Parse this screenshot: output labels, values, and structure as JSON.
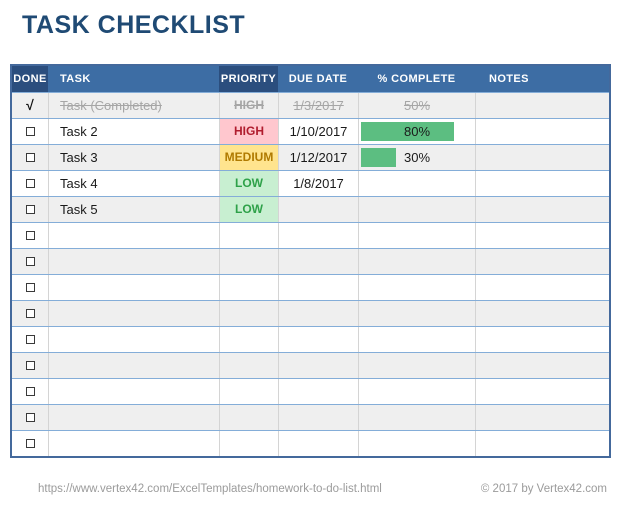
{
  "title": "TASK CHECKLIST",
  "colors": {
    "title_blue": "#1F4A74",
    "header_blue": "#3D6DA4",
    "header_dark_blue": "#2B4E7E",
    "row_band_gray": "#EFEFEF",
    "completed_gray": "#A6A6A6",
    "high_bg": "#FFC7CE",
    "high_text": "#B01C2E",
    "medium_bg": "#FFE48E",
    "medium_text": "#B07A00",
    "low_bg": "#C8EFD1",
    "low_text": "#2EA149",
    "bar_green": "#5CBE81"
  },
  "table": {
    "headers": [
      "DONE",
      "TASK",
      "PRIORITY",
      "DUE DATE",
      "% COMPLETE",
      "NOTES"
    ],
    "check_glyph": "√",
    "rows": [
      {
        "done": "check",
        "task": "Task (Completed)",
        "priority": "HIGH",
        "due": "1/3/2017",
        "percent": "50%",
        "bar": 0,
        "completed": true
      },
      {
        "done": "box",
        "task": "Task 2",
        "priority": "HIGH",
        "due": "1/10/2017",
        "percent": "80%",
        "bar": 80,
        "completed": false
      },
      {
        "done": "box",
        "task": "Task 3",
        "priority": "MEDIUM",
        "due": "1/12/2017",
        "percent": "30%",
        "bar": 30,
        "completed": false
      },
      {
        "done": "box",
        "task": "Task 4",
        "priority": "LOW",
        "due": "1/8/2017",
        "percent": "",
        "bar": 0,
        "completed": false
      },
      {
        "done": "box",
        "task": "Task 5",
        "priority": "LOW",
        "due": "",
        "percent": "",
        "bar": 0,
        "completed": false
      },
      {
        "done": "box",
        "task": "",
        "priority": "",
        "due": "",
        "percent": "",
        "bar": 0,
        "completed": false
      },
      {
        "done": "box",
        "task": "",
        "priority": "",
        "due": "",
        "percent": "",
        "bar": 0,
        "completed": false
      },
      {
        "done": "box",
        "task": "",
        "priority": "",
        "due": "",
        "percent": "",
        "bar": 0,
        "completed": false
      },
      {
        "done": "box",
        "task": "",
        "priority": "",
        "due": "",
        "percent": "",
        "bar": 0,
        "completed": false
      },
      {
        "done": "box",
        "task": "",
        "priority": "",
        "due": "",
        "percent": "",
        "bar": 0,
        "completed": false
      },
      {
        "done": "box",
        "task": "",
        "priority": "",
        "due": "",
        "percent": "",
        "bar": 0,
        "completed": false
      },
      {
        "done": "box",
        "task": "",
        "priority": "",
        "due": "",
        "percent": "",
        "bar": 0,
        "completed": false
      },
      {
        "done": "box",
        "task": "",
        "priority": "",
        "due": "",
        "percent": "",
        "bar": 0,
        "completed": false
      },
      {
        "done": "box",
        "task": "",
        "priority": "",
        "due": "",
        "percent": "",
        "bar": 0,
        "completed": false
      }
    ]
  },
  "footer": {
    "url": "https://www.vertex42.com/ExcelTemplates/homework-to-do-list.html",
    "copyright": "© 2017 by Vertex42.com"
  }
}
